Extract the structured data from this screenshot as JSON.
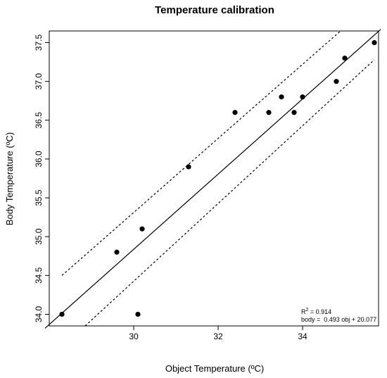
{
  "chart_data": {
    "type": "scatter",
    "title": "Temperature calibration",
    "xlabel": "Object Temperature (ºC)",
    "ylabel": "Body Temperature (ºC)",
    "xlim": [
      28.0,
      35.8
    ],
    "ylim": [
      33.85,
      37.65
    ],
    "x_ticks": [
      30,
      32,
      34
    ],
    "y_ticks": [
      34.0,
      34.5,
      35.0,
      35.5,
      36.0,
      36.5,
      37.0,
      37.5
    ],
    "x_tick_labels": [
      "30",
      "32",
      "34"
    ],
    "y_tick_labels": [
      "34.0",
      "34.5",
      "35.0",
      "35.5",
      "36.0",
      "36.5",
      "37.0",
      "37.5"
    ],
    "grid": false,
    "points": [
      {
        "x": 28.3,
        "y": 34.0
      },
      {
        "x": 29.6,
        "y": 34.8
      },
      {
        "x": 30.1,
        "y": 34.0
      },
      {
        "x": 30.2,
        "y": 35.1
      },
      {
        "x": 31.3,
        "y": 35.9
      },
      {
        "x": 32.4,
        "y": 36.6
      },
      {
        "x": 33.2,
        "y": 36.6
      },
      {
        "x": 33.5,
        "y": 36.8
      },
      {
        "x": 33.8,
        "y": 36.6
      },
      {
        "x": 34.0,
        "y": 36.8
      },
      {
        "x": 34.8,
        "y": 37.0
      },
      {
        "x": 35.0,
        "y": 37.3
      },
      {
        "x": 35.7,
        "y": 37.5
      }
    ],
    "fit_line": {
      "slope": 0.493,
      "intercept": 20.077
    },
    "fit_line_drawn": {
      "x": [
        27.9,
        35.85
      ],
      "y": [
        33.82,
        37.67
      ]
    },
    "confidence_upper": {
      "x": [
        28.3,
        34.9
      ],
      "y": [
        34.5,
        37.65
      ]
    },
    "confidence_lower": {
      "x": [
        28.85,
        35.7
      ],
      "y": [
        33.85,
        37.28
      ]
    },
    "annotation": {
      "r2_prefix": "R",
      "r2_sup": "2",
      "r2_value": " = 0.914",
      "equation": "body =  0.493 obj + 20.077"
    }
  }
}
